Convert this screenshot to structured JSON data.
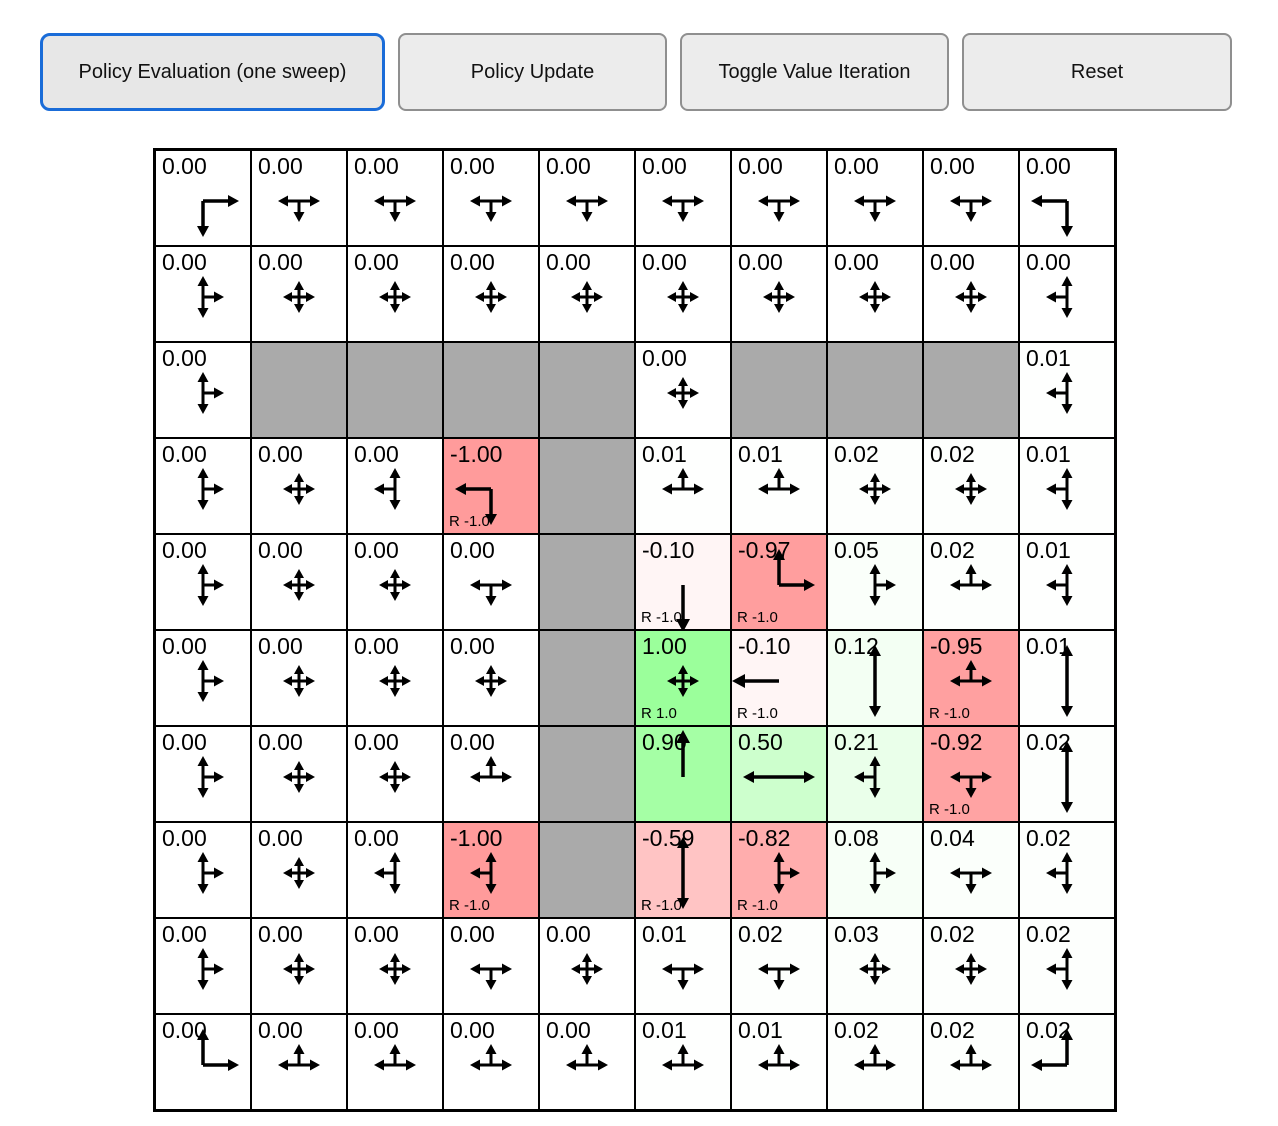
{
  "toolbar": {
    "buttons": [
      {
        "label": "Policy Evaluation (one sweep)",
        "active": true
      },
      {
        "label": "Policy Update",
        "active": false
      },
      {
        "label": "Toggle Value Iteration",
        "active": false
      },
      {
        "label": "Reset",
        "active": false
      }
    ]
  },
  "colors": {
    "wall": "#aaaaaa",
    "active_button_border": "#1a6cd8",
    "button_border": "#8f8f8f",
    "button_bg": "#ececec",
    "cell_border": "#000000",
    "positive_tint_example_1.00": "#9bff9b",
    "negative_tint_example_-1.00": "#ff9b9b",
    "value_tint_scale": 100
  },
  "grid": {
    "rows": 10,
    "cols": 10,
    "cells": [
      [
        {
          "t": "0.00",
          "v": 0,
          "d": [
            "right",
            "down"
          ]
        },
        {
          "t": "0.00",
          "v": 0,
          "d": [
            "left",
            "right",
            "down"
          ]
        },
        {
          "t": "0.00",
          "v": 0,
          "d": [
            "left",
            "right",
            "down"
          ]
        },
        {
          "t": "0.00",
          "v": 0,
          "d": [
            "left",
            "right",
            "down"
          ]
        },
        {
          "t": "0.00",
          "v": 0,
          "d": [
            "left",
            "right",
            "down"
          ]
        },
        {
          "t": "0.00",
          "v": 0,
          "d": [
            "left",
            "right",
            "down"
          ]
        },
        {
          "t": "0.00",
          "v": 0,
          "d": [
            "left",
            "right",
            "down"
          ]
        },
        {
          "t": "0.00",
          "v": 0,
          "d": [
            "left",
            "right",
            "down"
          ]
        },
        {
          "t": "0.00",
          "v": 0,
          "d": [
            "left",
            "right",
            "down"
          ]
        },
        {
          "t": "0.00",
          "v": 0,
          "d": [
            "left",
            "down"
          ]
        }
      ],
      [
        {
          "t": "0.00",
          "v": 0,
          "d": [
            "up",
            "down",
            "right"
          ]
        },
        {
          "t": "0.00",
          "v": 0,
          "d": [
            "up",
            "down",
            "left",
            "right"
          ]
        },
        {
          "t": "0.00",
          "v": 0,
          "d": [
            "up",
            "down",
            "left",
            "right"
          ]
        },
        {
          "t": "0.00",
          "v": 0,
          "d": [
            "up",
            "down",
            "left",
            "right"
          ]
        },
        {
          "t": "0.00",
          "v": 0,
          "d": [
            "up",
            "down",
            "left",
            "right"
          ]
        },
        {
          "t": "0.00",
          "v": 0,
          "d": [
            "up",
            "down",
            "left",
            "right"
          ]
        },
        {
          "t": "0.00",
          "v": 0,
          "d": [
            "up",
            "down",
            "left",
            "right"
          ]
        },
        {
          "t": "0.00",
          "v": 0,
          "d": [
            "up",
            "down",
            "left",
            "right"
          ]
        },
        {
          "t": "0.00",
          "v": 0,
          "d": [
            "up",
            "down",
            "left",
            "right"
          ]
        },
        {
          "t": "0.00",
          "v": 0,
          "d": [
            "up",
            "down",
            "left"
          ]
        }
      ],
      [
        {
          "t": "0.00",
          "v": 0,
          "d": [
            "up",
            "down",
            "right"
          ]
        },
        {
          "w": true
        },
        {
          "w": true
        },
        {
          "w": true
        },
        {
          "w": true
        },
        {
          "t": "0.00",
          "v": 0,
          "d": [
            "up",
            "down",
            "left",
            "right"
          ]
        },
        {
          "w": true
        },
        {
          "w": true
        },
        {
          "w": true
        },
        {
          "t": "0.01",
          "v": 0.01,
          "d": [
            "up",
            "down",
            "left"
          ]
        }
      ],
      [
        {
          "t": "0.00",
          "v": 0,
          "d": [
            "up",
            "down",
            "right"
          ]
        },
        {
          "t": "0.00",
          "v": 0,
          "d": [
            "up",
            "down",
            "left",
            "right"
          ]
        },
        {
          "t": "0.00",
          "v": 0,
          "d": [
            "up",
            "down",
            "left"
          ]
        },
        {
          "t": "-1.00",
          "v": -1,
          "d": [
            "left",
            "down"
          ],
          "r": "R -1.0"
        },
        {
          "w": true
        },
        {
          "t": "0.01",
          "v": 0.01,
          "d": [
            "up",
            "left",
            "right"
          ]
        },
        {
          "t": "0.01",
          "v": 0.01,
          "d": [
            "up",
            "left",
            "right"
          ]
        },
        {
          "t": "0.02",
          "v": 0.02,
          "d": [
            "up",
            "down",
            "left",
            "right"
          ]
        },
        {
          "t": "0.02",
          "v": 0.02,
          "d": [
            "up",
            "down",
            "left",
            "right"
          ]
        },
        {
          "t": "0.01",
          "v": 0.01,
          "d": [
            "up",
            "down",
            "left"
          ]
        }
      ],
      [
        {
          "t": "0.00",
          "v": 0,
          "d": [
            "up",
            "down",
            "right"
          ]
        },
        {
          "t": "0.00",
          "v": 0,
          "d": [
            "up",
            "down",
            "left",
            "right"
          ]
        },
        {
          "t": "0.00",
          "v": 0,
          "d": [
            "up",
            "down",
            "left",
            "right"
          ]
        },
        {
          "t": "0.00",
          "v": 0,
          "d": [
            "left",
            "right",
            "down"
          ]
        },
        {
          "w": true
        },
        {
          "t": "-0.10",
          "v": -0.1,
          "d": [
            "down"
          ],
          "r": "R -1.0"
        },
        {
          "t": "-0.97",
          "v": -0.97,
          "d": [
            "up",
            "right"
          ],
          "r": "R -1.0"
        },
        {
          "t": "0.05",
          "v": 0.05,
          "d": [
            "up",
            "down",
            "right"
          ]
        },
        {
          "t": "0.02",
          "v": 0.02,
          "d": [
            "up",
            "left",
            "right"
          ]
        },
        {
          "t": "0.01",
          "v": 0.01,
          "d": [
            "up",
            "down",
            "left"
          ]
        }
      ],
      [
        {
          "t": "0.00",
          "v": 0,
          "d": [
            "up",
            "down",
            "right"
          ]
        },
        {
          "t": "0.00",
          "v": 0,
          "d": [
            "up",
            "down",
            "left",
            "right"
          ]
        },
        {
          "t": "0.00",
          "v": 0,
          "d": [
            "up",
            "down",
            "left",
            "right"
          ]
        },
        {
          "t": "0.00",
          "v": 0,
          "d": [
            "up",
            "down",
            "left",
            "right"
          ]
        },
        {
          "w": true
        },
        {
          "t": "1.00",
          "v": 1,
          "d": [
            "up",
            "down",
            "left",
            "right"
          ],
          "r": "R 1.0"
        },
        {
          "t": "-0.10",
          "v": -0.1,
          "d": [
            "left"
          ],
          "r": "R -1.0"
        },
        {
          "t": "0.12",
          "v": 0.12,
          "d": [
            "up",
            "down"
          ]
        },
        {
          "t": "-0.95",
          "v": -0.95,
          "d": [
            "up",
            "left",
            "right"
          ],
          "r": "R -1.0"
        },
        {
          "t": "0.01",
          "v": 0.01,
          "d": [
            "up",
            "down"
          ]
        }
      ],
      [
        {
          "t": "0.00",
          "v": 0,
          "d": [
            "up",
            "down",
            "right"
          ]
        },
        {
          "t": "0.00",
          "v": 0,
          "d": [
            "up",
            "down",
            "left",
            "right"
          ]
        },
        {
          "t": "0.00",
          "v": 0,
          "d": [
            "up",
            "down",
            "left",
            "right"
          ]
        },
        {
          "t": "0.00",
          "v": 0,
          "d": [
            "up",
            "left",
            "right"
          ]
        },
        {
          "w": true
        },
        {
          "t": "0.90",
          "v": 0.9,
          "d": [
            "up"
          ]
        },
        {
          "t": "0.50",
          "v": 0.5,
          "d": [
            "left",
            "right"
          ]
        },
        {
          "t": "0.21",
          "v": 0.21,
          "d": [
            "up",
            "down",
            "left"
          ]
        },
        {
          "t": "-0.92",
          "v": -0.92,
          "d": [
            "left",
            "right",
            "down"
          ],
          "r": "R -1.0"
        },
        {
          "t": "0.02",
          "v": 0.02,
          "d": [
            "up",
            "down"
          ]
        }
      ],
      [
        {
          "t": "0.00",
          "v": 0,
          "d": [
            "up",
            "down",
            "right"
          ]
        },
        {
          "t": "0.00",
          "v": 0,
          "d": [
            "up",
            "down",
            "left",
            "right"
          ]
        },
        {
          "t": "0.00",
          "v": 0,
          "d": [
            "up",
            "down",
            "left"
          ]
        },
        {
          "t": "-1.00",
          "v": -1,
          "d": [
            "up",
            "down",
            "left"
          ],
          "r": "R -1.0"
        },
        {
          "w": true
        },
        {
          "t": "-0.59",
          "v": -0.59,
          "d": [
            "up",
            "down"
          ],
          "r": "R -1.0"
        },
        {
          "t": "-0.82",
          "v": -0.82,
          "d": [
            "up",
            "down",
            "right"
          ],
          "r": "R -1.0"
        },
        {
          "t": "0.08",
          "v": 0.08,
          "d": [
            "up",
            "down",
            "right"
          ]
        },
        {
          "t": "0.04",
          "v": 0.04,
          "d": [
            "left",
            "right",
            "down"
          ]
        },
        {
          "t": "0.02",
          "v": 0.02,
          "d": [
            "up",
            "down",
            "left"
          ]
        }
      ],
      [
        {
          "t": "0.00",
          "v": 0,
          "d": [
            "up",
            "down",
            "right"
          ]
        },
        {
          "t": "0.00",
          "v": 0,
          "d": [
            "up",
            "down",
            "left",
            "right"
          ]
        },
        {
          "t": "0.00",
          "v": 0,
          "d": [
            "up",
            "down",
            "left",
            "right"
          ]
        },
        {
          "t": "0.00",
          "v": 0,
          "d": [
            "left",
            "right",
            "down"
          ]
        },
        {
          "t": "0.00",
          "v": 0,
          "d": [
            "up",
            "down",
            "left",
            "right"
          ]
        },
        {
          "t": "0.01",
          "v": 0.01,
          "d": [
            "left",
            "right",
            "down"
          ]
        },
        {
          "t": "0.02",
          "v": 0.02,
          "d": [
            "left",
            "right",
            "down"
          ]
        },
        {
          "t": "0.03",
          "v": 0.03,
          "d": [
            "up",
            "down",
            "left",
            "right"
          ]
        },
        {
          "t": "0.02",
          "v": 0.02,
          "d": [
            "up",
            "down",
            "left",
            "right"
          ]
        },
        {
          "t": "0.02",
          "v": 0.02,
          "d": [
            "up",
            "down",
            "left"
          ]
        }
      ],
      [
        {
          "t": "0.00",
          "v": 0,
          "d": [
            "up",
            "right"
          ]
        },
        {
          "t": "0.00",
          "v": 0,
          "d": [
            "up",
            "left",
            "right"
          ]
        },
        {
          "t": "0.00",
          "v": 0,
          "d": [
            "up",
            "left",
            "right"
          ]
        },
        {
          "t": "0.00",
          "v": 0,
          "d": [
            "up",
            "left",
            "right"
          ]
        },
        {
          "t": "0.00",
          "v": 0,
          "d": [
            "up",
            "left",
            "right"
          ]
        },
        {
          "t": "0.01",
          "v": 0.01,
          "d": [
            "up",
            "left",
            "right"
          ]
        },
        {
          "t": "0.01",
          "v": 0.01,
          "d": [
            "up",
            "left",
            "right"
          ]
        },
        {
          "t": "0.02",
          "v": 0.02,
          "d": [
            "up",
            "left",
            "right"
          ]
        },
        {
          "t": "0.02",
          "v": 0.02,
          "d": [
            "up",
            "left",
            "right"
          ]
        },
        {
          "t": "0.02",
          "v": 0.02,
          "d": [
            "up",
            "left"
          ]
        }
      ]
    ]
  }
}
